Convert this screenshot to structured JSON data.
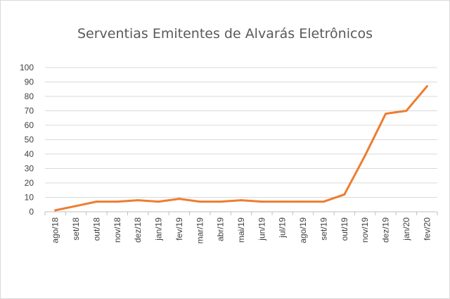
{
  "chart_data": {
    "type": "line",
    "title": "Serventias Emitentes de Alvarás Eletrônicos",
    "xlabel": "",
    "ylabel": "",
    "ylim": [
      0,
      100
    ],
    "yticks": [
      0,
      10,
      20,
      30,
      40,
      50,
      60,
      70,
      80,
      90,
      100
    ],
    "grid": true,
    "legend": "none",
    "categories": [
      "ago/18",
      "set/18",
      "out/18",
      "nov/18",
      "dez/18",
      "jan/19",
      "fev/19",
      "mar/19",
      "abr/19",
      "mai/19",
      "jun/19",
      "jul/19",
      "ago/19",
      "set/19",
      "out/19",
      "nov/19",
      "dez/19",
      "jan/20",
      "fev/20"
    ],
    "series": [
      {
        "values": [
          1,
          4,
          7,
          7,
          8,
          7,
          9,
          7,
          7,
          8,
          7,
          7,
          7,
          7,
          12,
          39,
          68,
          70,
          87
        ],
        "color": "#ED7D31"
      }
    ],
    "gridline_color": "#d9d9d9",
    "axis_color": "#bfbfbf"
  }
}
